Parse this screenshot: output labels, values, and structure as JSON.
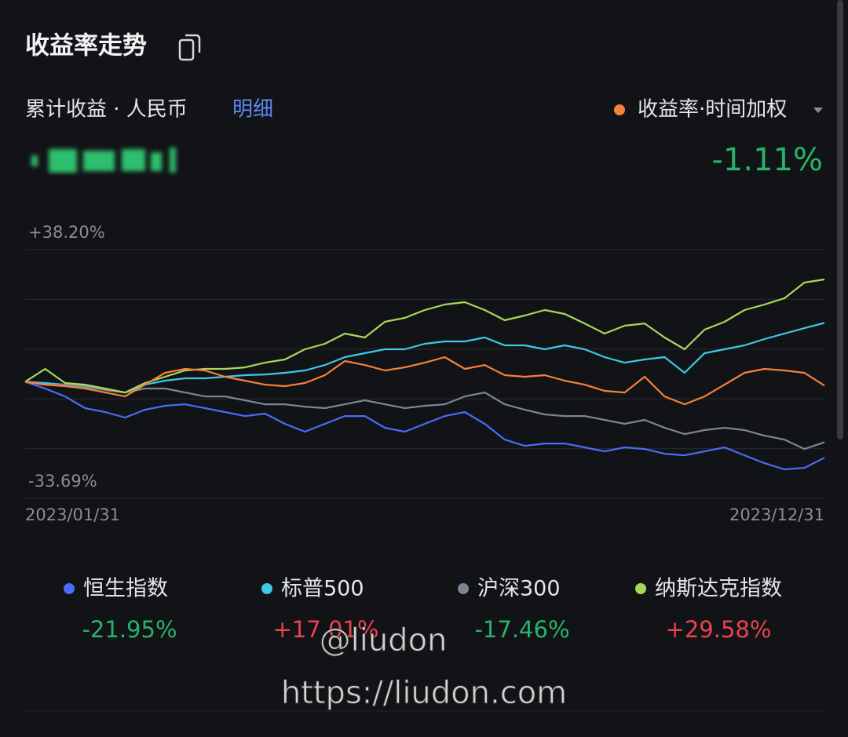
{
  "header": {
    "title": "收益率走势",
    "subtitle": "累计收益 · 人民币",
    "detail_link": "明细",
    "metric_selector": "收益率·时间加权",
    "metric_value": "-1.11%"
  },
  "watermark": {
    "handle": "@liudon",
    "url": "https://liudon.com"
  },
  "chart_data": {
    "type": "line",
    "categories": [
      "2023/01/31",
      null,
      null,
      null,
      null,
      null,
      null,
      null,
      null,
      null,
      null,
      null,
      null,
      null,
      null,
      null,
      null,
      null,
      null,
      null,
      null,
      null,
      null,
      null,
      null,
      null,
      null,
      null,
      null,
      null,
      null,
      null,
      null,
      null,
      null,
      null,
      null,
      null,
      null,
      null,
      "2023/12/31"
    ],
    "ylim": [
      -33.69,
      38.2
    ],
    "yticks": [
      {
        "value": 38.2,
        "label": "+38.20%"
      },
      {
        "value": -33.69,
        "label": "-33.69%"
      }
    ],
    "ygrid": [
      23.82,
      9.44,
      -4.93,
      -19.31
    ],
    "grid": true,
    "series": [
      {
        "name": "恒生指数",
        "color": "#4a6cf7",
        "total_label": "-21.95%",
        "values": [
          0,
          -1.95,
          -4.22,
          -7.62,
          -8.75,
          -10.34,
          -8.07,
          -6.94,
          -6.49,
          -7.62,
          -8.75,
          -9.89,
          -9.2,
          -12.15,
          -14.42,
          -12.15,
          -9.89,
          -9.89,
          -13.29,
          -14.42,
          -12.15,
          -9.89,
          -8.75,
          -12.15,
          -16.7,
          -18.51,
          -17.83,
          -17.83,
          -18.96,
          -20.1,
          -18.96,
          -19.42,
          -20.78,
          -21.23,
          -20.1,
          -18.96,
          -21.23,
          -23.5,
          -25.31,
          -24.86,
          -21.95
        ]
      },
      {
        "name": "标普500",
        "color": "#3ec8e8",
        "total_label": "+17.01%",
        "values": [
          0,
          -0.36,
          -0.82,
          -1.27,
          -2.18,
          -3.09,
          -0.82,
          0.32,
          1.0,
          1.0,
          1.45,
          1.91,
          2.13,
          2.59,
          3.27,
          4.85,
          7.12,
          8.26,
          9.39,
          9.39,
          10.98,
          11.66,
          11.66,
          12.79,
          10.53,
          10.53,
          9.39,
          10.53,
          9.39,
          7.12,
          5.53,
          6.44,
          7.12,
          2.59,
          8.26,
          9.39,
          10.53,
          12.34,
          13.93,
          15.51,
          17.01
        ]
      },
      {
        "name": "沪深300",
        "color": "#7d8594",
        "total_label": "-17.46%",
        "values": [
          0,
          -0.82,
          -0.82,
          -1.5,
          -2.41,
          -3.09,
          -1.95,
          -1.95,
          -3.09,
          -4.22,
          -4.22,
          -5.35,
          -6.49,
          -6.49,
          -7.17,
          -7.62,
          -6.49,
          -5.35,
          -6.49,
          -7.62,
          -6.94,
          -6.49,
          -4.22,
          -3.09,
          -6.49,
          -8.07,
          -9.43,
          -9.89,
          -9.89,
          -11.02,
          -12.15,
          -11.02,
          -13.29,
          -15.11,
          -13.97,
          -13.29,
          -13.97,
          -15.56,
          -16.7,
          -19.42,
          -17.46
        ]
      },
      {
        "name": "纳斯达克指数",
        "color": "#a8d85a",
        "total_label": "+29.58%",
        "values": [
          0,
          3.72,
          -0.36,
          -0.82,
          -1.95,
          -3.09,
          -0.36,
          1.45,
          3.27,
          3.72,
          3.72,
          4.17,
          5.53,
          6.44,
          9.39,
          10.98,
          13.93,
          12.79,
          17.33,
          18.46,
          20.73,
          22.32,
          23.0,
          20.73,
          17.78,
          19.14,
          20.73,
          19.6,
          16.87,
          13.93,
          16.2,
          16.87,
          12.79,
          9.39,
          15.06,
          17.33,
          20.73,
          22.32,
          24.13,
          28.67,
          29.58
        ]
      }
    ],
    "portfolio": {
      "name": "收益率·时间加权",
      "color": "#f5813a",
      "values": [
        0,
        -0.82,
        -1.27,
        -1.95,
        -3.09,
        -4.22,
        -0.82,
        2.59,
        3.72,
        3.27,
        1.45,
        0.32,
        -0.82,
        -1.27,
        -0.36,
        1.91,
        5.99,
        4.85,
        3.27,
        4.17,
        5.53,
        7.12,
        3.72,
        4.85,
        1.91,
        1.45,
        1.91,
        0.32,
        -0.82,
        -2.63,
        -3.09,
        1.45,
        -4.22,
        -6.49,
        -4.22,
        -0.82,
        2.59,
        3.72,
        3.27,
        2.59,
        -1.11
      ]
    }
  }
}
